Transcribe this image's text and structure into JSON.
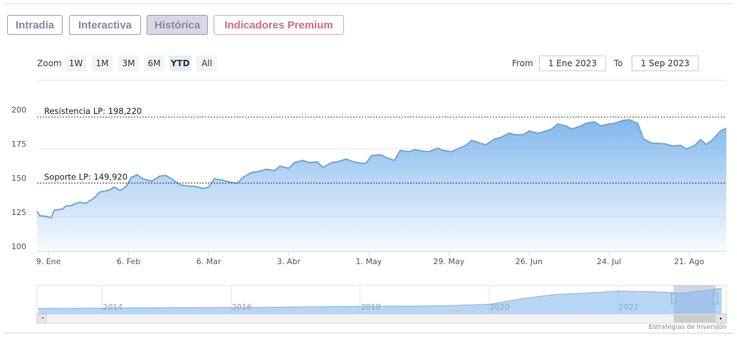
{
  "tabs": [
    "Intradía",
    "Interactiva",
    "Histórica",
    "Indicadores Premium"
  ],
  "active_tab": 2,
  "zoom": {
    "label": "Zoom",
    "buttons": [
      "1W",
      "1M",
      "3M",
      "6M",
      "YTD",
      "All"
    ],
    "selected": 4
  },
  "range": {
    "from_label": "From",
    "from": "1 Ene 2023",
    "to_label": "To",
    "to": "1 Sep 2023"
  },
  "credit": "Estrategias de Inversión",
  "chart_data": [
    {
      "type": "area",
      "color": "#6aa6dd",
      "x": [
        "2023-01-05",
        "2023-01-06",
        "2023-01-08",
        "2023-01-10",
        "2023-01-11",
        "2023-01-14",
        "2023-01-15",
        "2023-01-17",
        "2023-01-20",
        "2023-01-22",
        "2023-01-25",
        "2023-01-27",
        "2023-01-30",
        "2023-02-01",
        "2023-02-03",
        "2023-02-05",
        "2023-02-07",
        "2023-02-09",
        "2023-02-11",
        "2023-02-14",
        "2023-02-17",
        "2023-02-19",
        "2023-02-21",
        "2023-02-24",
        "2023-02-27",
        "2023-03-01",
        "2023-03-04",
        "2023-03-06",
        "2023-03-08",
        "2023-03-11",
        "2023-03-13",
        "2023-03-16",
        "2023-03-18",
        "2023-03-21",
        "2023-03-24",
        "2023-03-26",
        "2023-03-29",
        "2023-03-31",
        "2023-04-03",
        "2023-04-05",
        "2023-04-08",
        "2023-04-10",
        "2023-04-13",
        "2023-04-15",
        "2023-04-18",
        "2023-04-20",
        "2023-04-23",
        "2023-04-25",
        "2023-04-28",
        "2023-04-30",
        "2023-05-02",
        "2023-05-05",
        "2023-05-07",
        "2023-05-10",
        "2023-05-12",
        "2023-05-15",
        "2023-05-17",
        "2023-05-20",
        "2023-05-22",
        "2023-05-25",
        "2023-05-27",
        "2023-05-30",
        "2023-06-01",
        "2023-06-04",
        "2023-06-06",
        "2023-06-09",
        "2023-06-11",
        "2023-06-14",
        "2023-06-16",
        "2023-06-19",
        "2023-06-21",
        "2023-06-24",
        "2023-06-26",
        "2023-06-29",
        "2023-07-01",
        "2023-07-04",
        "2023-07-06",
        "2023-07-09",
        "2023-07-11",
        "2023-07-14",
        "2023-07-16",
        "2023-07-19",
        "2023-07-21",
        "2023-07-24",
        "2023-07-26",
        "2023-07-29",
        "2023-07-31",
        "2023-08-03",
        "2023-08-05",
        "2023-08-08",
        "2023-08-10",
        "2023-08-13",
        "2023-08-15",
        "2023-08-18",
        "2023-08-20",
        "2023-08-23",
        "2023-08-25",
        "2023-08-27",
        "2023-08-29",
        "2023-09-01",
        "2023-09-03"
      ],
      "values": [
        129.3,
        126,
        125.6,
        124.6,
        130,
        131,
        133,
        133.5,
        136,
        135,
        139,
        143.5,
        144.5,
        147,
        144.5,
        147,
        154,
        156,
        153,
        151.3,
        155,
        155.5,
        153,
        148.7,
        147.6,
        147.6,
        146,
        147,
        153,
        152,
        150.8,
        149.7,
        154,
        157.6,
        158.6,
        160,
        159,
        162.3,
        160.7,
        164.9,
        166.5,
        164.9,
        165.4,
        161.3,
        164.9,
        165.4,
        167.5,
        166,
        164.4,
        164.4,
        170,
        170.7,
        168.6,
        166.5,
        173.8,
        172.8,
        174.3,
        173.3,
        172.8,
        175.4,
        173.8,
        172.8,
        174.9,
        177.5,
        181.2,
        179,
        178,
        182.2,
        183.2,
        186.4,
        185.3,
        185.3,
        188,
        186.4,
        187.4,
        189.5,
        193.2,
        191.6,
        189.5,
        191.6,
        193.7,
        194.8,
        191.6,
        193.2,
        193.7,
        195.8,
        196.3,
        193.7,
        182.2,
        179,
        179,
        178.5,
        177,
        177.5,
        174.9,
        177.5,
        181.7,
        178,
        181.2,
        188,
        190
      ],
      "xlim": [
        "2023-01-05",
        "2023-09-03"
      ],
      "xticks": [
        {
          "value": "2023-01-09",
          "label": "9. Ene"
        },
        {
          "value": "2023-02-06",
          "label": "6. Feb"
        },
        {
          "value": "2023-03-06",
          "label": "6. Mar"
        },
        {
          "value": "2023-04-03",
          "label": "3. Abr"
        },
        {
          "value": "2023-05-01",
          "label": "1. May"
        },
        {
          "value": "2023-05-29",
          "label": "29. May"
        },
        {
          "value": "2023-06-26",
          "label": "26. Jun"
        },
        {
          "value": "2023-07-24",
          "label": "24. Jul"
        },
        {
          "value": "2023-08-21",
          "label": "21. Ago"
        }
      ],
      "ylim": [
        100,
        225
      ],
      "yticks": [
        100,
        125,
        150,
        175,
        200
      ],
      "grid": true,
      "plot_lines": [
        {
          "value": 198.22,
          "label": "Resistencia LP: 198,220",
          "color": "#2f5d34"
        },
        {
          "value": 149.92,
          "label": "Soporte LP: 149,920",
          "color": "#7a1f1f"
        }
      ]
    },
    {
      "type": "area",
      "color": "#7cb5ec",
      "x": [
        2013,
        2014,
        2015,
        2016,
        2017,
        2018,
        2019,
        2019.5,
        2020,
        2020.5,
        2021,
        2021.5,
        2022,
        2022.5,
        2023,
        2023.6
      ],
      "values": [
        40,
        42,
        45,
        46,
        50,
        55,
        58,
        62,
        70,
        110,
        140,
        150,
        165,
        160,
        150,
        185
      ],
      "xlim": [
        2012.98,
        2023.67
      ],
      "xticks": [
        2014,
        2016,
        2018,
        2020,
        2022
      ],
      "ylim": [
        0,
        200
      ]
    }
  ]
}
